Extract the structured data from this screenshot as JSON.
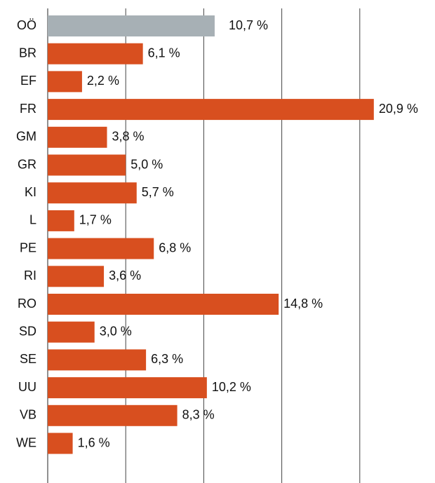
{
  "chart_data": {
    "type": "bar",
    "orientation": "horizontal",
    "categories": [
      "OÖ",
      "BR",
      "EF",
      "FR",
      "GM",
      "GR",
      "KI",
      "L",
      "PE",
      "RI",
      "RO",
      "SD",
      "SE",
      "UU",
      "VB",
      "WE"
    ],
    "values": [
      10.7,
      6.1,
      2.2,
      20.9,
      3.8,
      5.0,
      5.7,
      1.7,
      6.8,
      3.6,
      14.8,
      3.0,
      6.3,
      10.2,
      8.3,
      1.6
    ],
    "value_labels": [
      "10,7 %",
      "6,1 %",
      "2,2 %",
      "20,9 %",
      "3,8 %",
      "5,0 %",
      "5,7 %",
      "1,7 %",
      "6,8 %",
      "3,6 %",
      "14,8 %",
      "3,0 %",
      "6,3 %",
      "10,2 %",
      "8,3 %",
      "1,6 %"
    ],
    "colors": [
      "#a7b0b5",
      "#d84f1f",
      "#d84f1f",
      "#d84f1f",
      "#d84f1f",
      "#d84f1f",
      "#d84f1f",
      "#d84f1f",
      "#d84f1f",
      "#d84f1f",
      "#d84f1f",
      "#d84f1f",
      "#d84f1f",
      "#d84f1f",
      "#d84f1f",
      "#d84f1f"
    ],
    "xlim": [
      0,
      25
    ],
    "xticks": [
      0,
      5,
      10,
      15,
      20,
      25
    ],
    "grid": true
  }
}
